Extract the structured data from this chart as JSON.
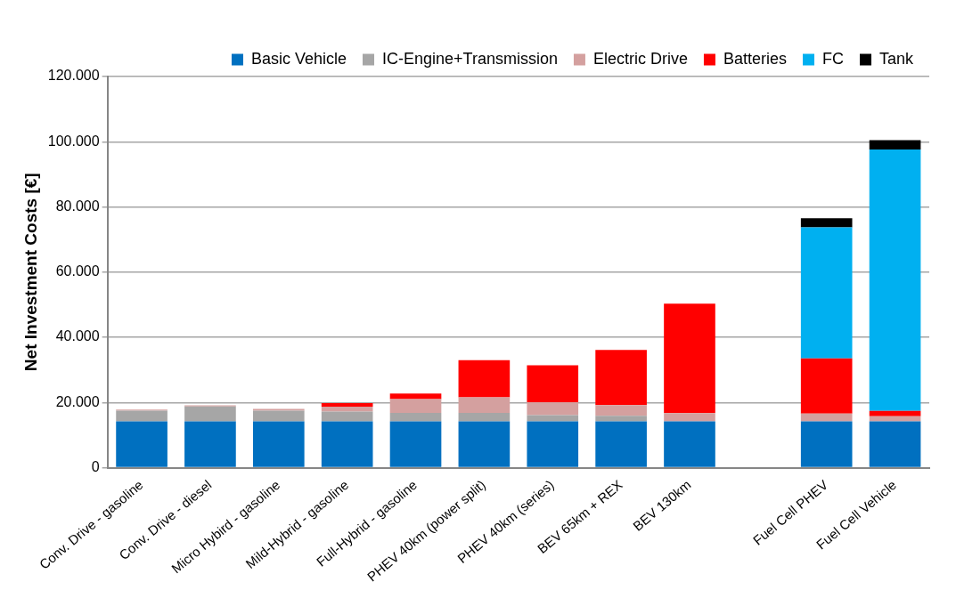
{
  "chart_data": {
    "type": "bar",
    "stacked": true,
    "ylabel": "Net Investment Costs [€]",
    "categories": [
      "Conv. Drive - gasoline",
      "Conv. Drive - diesel",
      "Micro Hybird - gasoline",
      "Mild-Hybrid - gasoline",
      "Full-Hybrid - gasoline",
      "PHEV 40km (power split)",
      "PHEV 40km (series)",
      "BEV 65km + REX",
      "BEV 130km",
      null,
      "Fuel Cell PHEV",
      "Fuel Cell Vehicle"
    ],
    "series": [
      {
        "name": "Basic Vehicle",
        "color": "#0070c0",
        "values": [
          14200,
          14200,
          14200,
          14200,
          14200,
          14200,
          14200,
          14200,
          14200,
          null,
          14200,
          14200
        ]
      },
      {
        "name": "IC-Engine+Transmission",
        "color": "#a6a6a6",
        "values": [
          3300,
          4600,
          3300,
          3000,
          2600,
          2600,
          1900,
          1700,
          0,
          null,
          0,
          0
        ]
      },
      {
        "name": "Electric Drive",
        "color": "#d4a09f",
        "values": [
          300,
          300,
          500,
          1500,
          4200,
          4800,
          4000,
          3300,
          2500,
          null,
          2400,
          1600
        ]
      },
      {
        "name": "Batteries",
        "color": "#ff0000",
        "values": [
          0,
          0,
          0,
          1100,
          1700,
          11400,
          11300,
          16900,
          33600,
          null,
          16900,
          1600
        ]
      },
      {
        "name": "FC",
        "color": "#00b0f0",
        "values": [
          0,
          0,
          0,
          0,
          0,
          0,
          0,
          0,
          0,
          null,
          40200,
          80200
        ]
      },
      {
        "name": "Tank",
        "color": "#000000",
        "values": [
          0,
          0,
          0,
          0,
          0,
          0,
          0,
          0,
          0,
          null,
          2800,
          2900
        ]
      }
    ],
    "ylim": [
      0,
      120000
    ],
    "yticks": [
      0,
      {
        "value": 20000,
        "label": "20.000"
      },
      {
        "value": 40000,
        "label": "40.000"
      },
      {
        "value": 60000,
        "label": "60.000"
      },
      {
        "value": 80000,
        "label": "80.000"
      },
      {
        "value": 100000,
        "label": "100.000"
      },
      {
        "value": 120000,
        "label": "120.000"
      }
    ],
    "grid": "y",
    "legend": "top"
  }
}
